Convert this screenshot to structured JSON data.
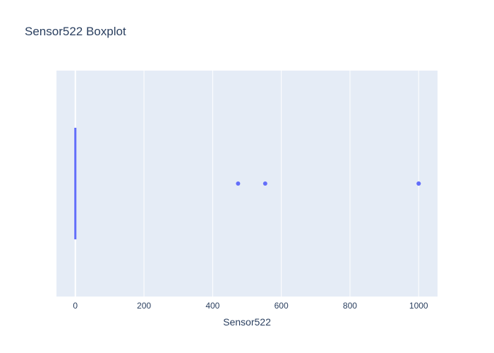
{
  "chart_data": {
    "type": "box",
    "title": "Sensor522 Boxplot",
    "xlabel": "Sensor522",
    "ylabel": "",
    "orientation": "horizontal",
    "xlim": [
      -55,
      1055
    ],
    "x_ticks": [
      0,
      200,
      400,
      600,
      800,
      1000
    ],
    "grid": true,
    "series": [
      {
        "box": {
          "min": 0,
          "q1": 0,
          "median": 0,
          "q3": 0,
          "max": 0
        },
        "outliers": [
          474,
          553,
          1000,
          1000
        ]
      }
    ]
  },
  "colors": {
    "plot_background": "#e5ecf6",
    "grid": "#ffffff",
    "trace": "#636efa",
    "text": "#2a3f5f"
  }
}
